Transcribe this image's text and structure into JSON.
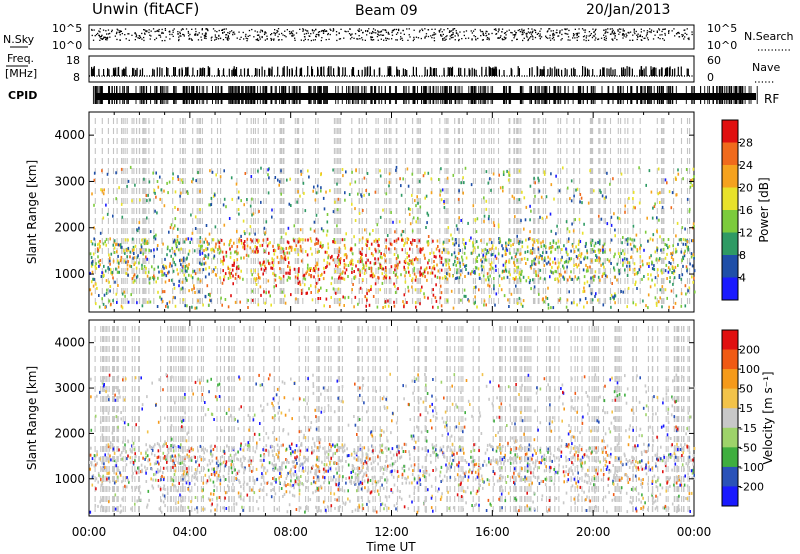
{
  "header": {
    "station": "Unwin (fitACF)",
    "beam": "Beam 09",
    "date": "20/Jan/2013"
  },
  "summary_labels": {
    "nsky": "N.Sky",
    "nsearch": "N.Search",
    "freq_line1": "Freq.",
    "freq_line2": "[MHz]",
    "nave": "Nave",
    "cpid": "CPID",
    "noise_ticks": [
      "10^5",
      "10^0"
    ],
    "freq_ticks": [
      "18",
      "8"
    ],
    "nave_ticks": [
      "60",
      "0"
    ],
    "cpid_tail": "RF"
  },
  "chart_data": [
    {
      "type": "heatmap",
      "title": "",
      "xlabel": "",
      "ylabel": "Slant Range [km]",
      "x_tick_labels": [
        "00:00",
        "04:00",
        "08:00",
        "12:00",
        "16:00",
        "20:00",
        "00:00"
      ],
      "xlim": [
        0,
        24
      ],
      "y_ticks": [
        1000,
        2000,
        3000,
        4000
      ],
      "ylim": [
        180,
        4500
      ],
      "colorbar": {
        "label": "Power [dB]",
        "ticks": [
          4,
          8,
          12,
          16,
          20,
          24,
          28
        ],
        "range": [
          0,
          32
        ],
        "bands": [
          {
            "from": 0,
            "to": 4,
            "color": "#1a1aff"
          },
          {
            "from": 4,
            "to": 8,
            "color": "#1f4fa8"
          },
          {
            "from": 8,
            "to": 12,
            "color": "#2f9a64"
          },
          {
            "from": 12,
            "to": 16,
            "color": "#7ccb3c"
          },
          {
            "from": 16,
            "to": 20,
            "color": "#e8e22a"
          },
          {
            "from": 20,
            "to": 24,
            "color": "#f5a21e"
          },
          {
            "from": 24,
            "to": 28,
            "color": "#f06a1c"
          },
          {
            "from": 28,
            "to": 32,
            "color": "#e01010"
          }
        ]
      }
    },
    {
      "type": "heatmap",
      "title": "",
      "xlabel": "Time UT",
      "ylabel": "Slant Range [km]",
      "x_tick_labels": [
        "00:00",
        "04:00",
        "08:00",
        "12:00",
        "16:00",
        "20:00",
        "00:00"
      ],
      "xlim": [
        0,
        24
      ],
      "y_ticks": [
        1000,
        2000,
        3000,
        4000
      ],
      "ylim": [
        180,
        4500
      ],
      "colorbar": {
        "label": "Velocity [m s⁻¹]",
        "ticks": [
          "200",
          "100",
          "50",
          "15",
          "-15",
          "-50",
          "-100",
          "-200"
        ],
        "bands": [
          {
            "color": "#1a1aff"
          },
          {
            "color": "#2a52b8"
          },
          {
            "color": "#3fae3f"
          },
          {
            "color": "#9ed36a"
          },
          {
            "color": "#c8c8c8"
          },
          {
            "color": "#f2c34a"
          },
          {
            "color": "#f59a1a"
          },
          {
            "color": "#f05a14"
          },
          {
            "color": "#e01010"
          }
        ]
      }
    }
  ]
}
